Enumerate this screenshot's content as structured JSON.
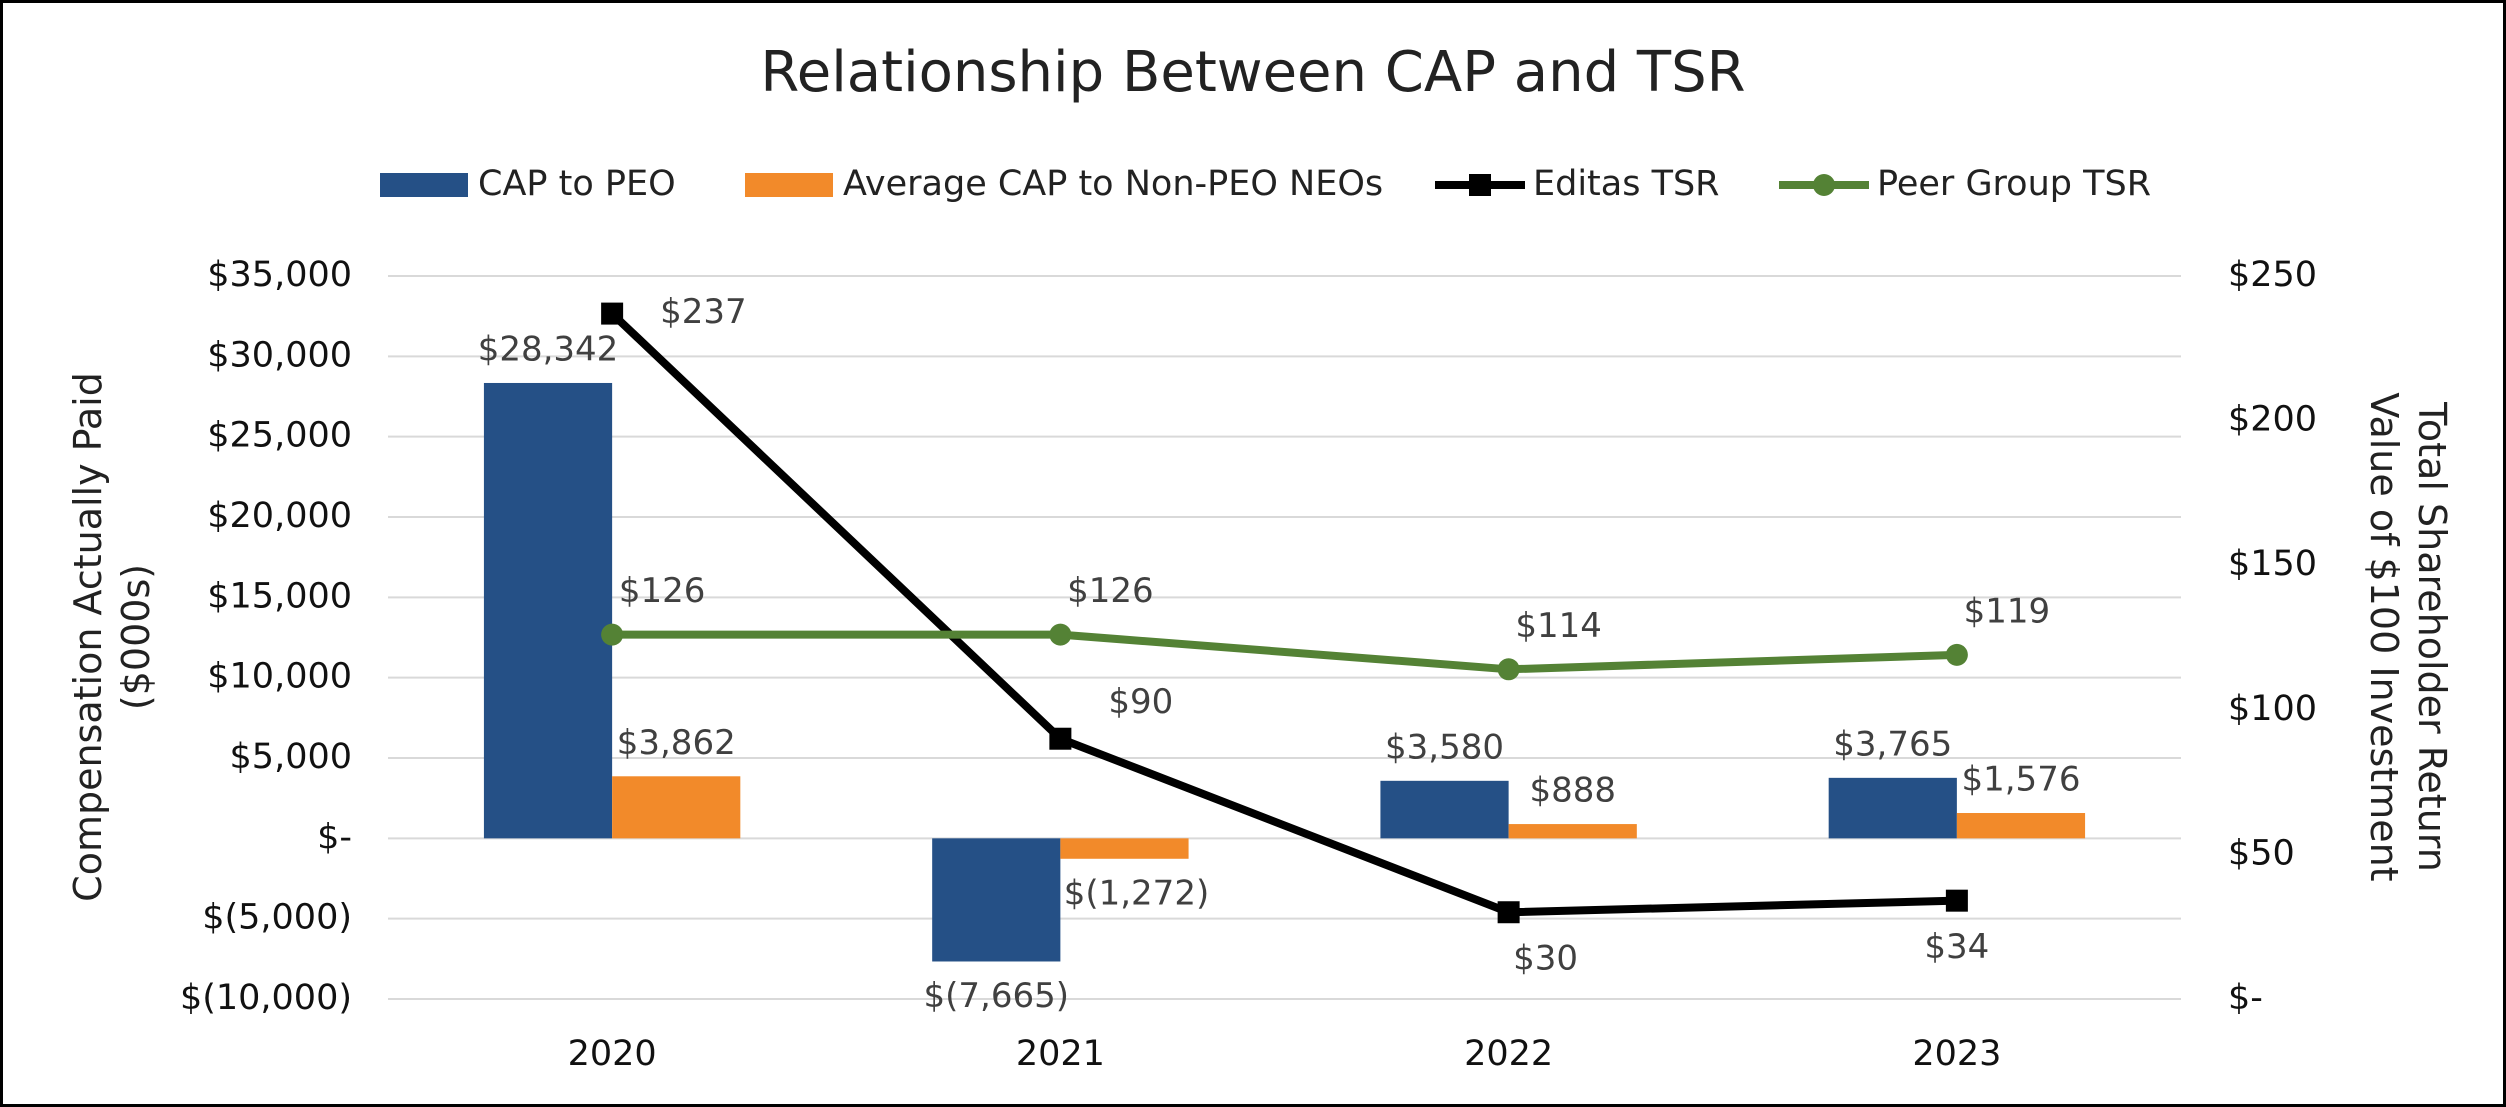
{
  "chart_data": {
    "type": "bar_line",
    "title": "Relationship Between CAP and TSR",
    "categories": [
      "2020",
      "2021",
      "2022",
      "2023"
    ],
    "ylabel": [
      "Compensation Actually Paid",
      "($000s)"
    ],
    "y2label": [
      "Total Shareholder Return",
      "Value of $100 Investment"
    ],
    "ylim": [
      -10000,
      35000
    ],
    "yticks": [
      {
        "value": -10000,
        "label": "$(10,000)"
      },
      {
        "value": -5000,
        "label": "$(5,000)"
      },
      {
        "value": 0,
        "label": "$-"
      },
      {
        "value": 5000,
        "label": "$5,000"
      },
      {
        "value": 10000,
        "label": "$10,000"
      },
      {
        "value": 15000,
        "label": "$15,000"
      },
      {
        "value": 20000,
        "label": "$20,000"
      },
      {
        "value": 25000,
        "label": "$25,000"
      },
      {
        "value": 30000,
        "label": "$30,000"
      },
      {
        "value": 35000,
        "label": "$35,000"
      }
    ],
    "y2lim": [
      0,
      250
    ],
    "y2ticks": [
      {
        "value": 0,
        "label": "$-"
      },
      {
        "value": 50,
        "label": "$50"
      },
      {
        "value": 100,
        "label": "$100"
      },
      {
        "value": 150,
        "label": "$150"
      },
      {
        "value": 200,
        "label": "$200"
      },
      {
        "value": 250,
        "label": "$250"
      }
    ],
    "grid": true,
    "series": [
      {
        "name": "CAP to PEO",
        "type": "bar",
        "color": "#255086",
        "values": [
          28342,
          -7665,
          3580,
          3765
        ],
        "value_labels": [
          "$28,342",
          "$(7,665)",
          "$3,580",
          "$3,765"
        ]
      },
      {
        "name": "Average CAP to Non-PEO NEOs",
        "type": "bar",
        "color": "#f28a2a",
        "values": [
          3862,
          -1272,
          888,
          1576
        ],
        "value_labels": [
          "$3,862",
          "$(1,272)",
          "$888",
          "$1,576"
        ]
      },
      {
        "name": "Editas TSR",
        "type": "line",
        "axis": "y2",
        "marker": "square",
        "color": "#000000",
        "values": [
          237,
          90,
          30,
          34
        ],
        "value_labels": [
          "$237",
          "$90",
          "$30",
          "$34"
        ]
      },
      {
        "name": "Peer Group TSR",
        "type": "line",
        "axis": "y2",
        "marker": "circle",
        "color": "#548235",
        "values": [
          126,
          126,
          114,
          119
        ],
        "value_labels": [
          "$126",
          "$126",
          "$114",
          "$119"
        ]
      }
    ]
  }
}
